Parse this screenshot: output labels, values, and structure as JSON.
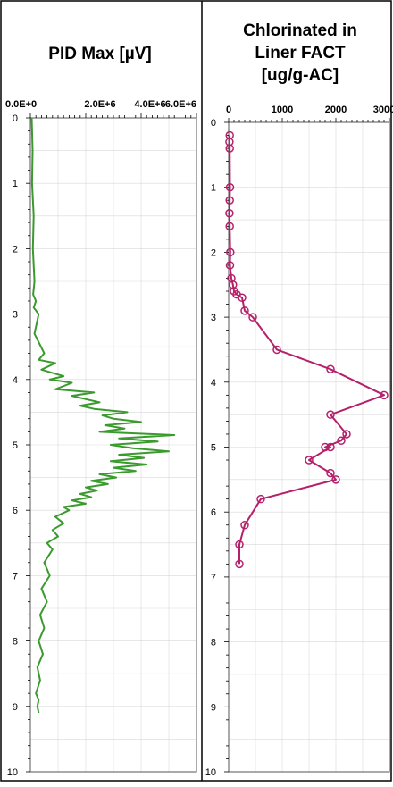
{
  "chart_data": [
    {
      "type": "line",
      "title": "PID Max [µV]",
      "x_ticks": [
        "0.0E+0",
        "2.0E+6",
        "4.0E+6",
        "6.0E+6"
      ],
      "y_ticks": [
        "0",
        "1",
        "2",
        "3",
        "4",
        "5",
        "6",
        "7",
        "8",
        "9",
        "10"
      ],
      "xlim": [
        0,
        6000000
      ],
      "ylim": [
        0,
        10
      ],
      "y_reversed": true,
      "grid": true,
      "color": "#3a9a2e",
      "series": [
        {
          "x": [
            50000,
            80000,
            60000,
            120000,
            90000,
            150000,
            100000,
            200000,
            120000,
            300000,
            150000,
            500000,
            300000,
            900000,
            400000,
            1200000,
            700000,
            1500000,
            900000,
            2300000,
            1500000,
            2000000,
            2500000,
            1800000,
            2300000,
            3500000,
            2600000,
            3000000,
            4000000,
            2700000,
            3400000,
            2500000,
            5200000,
            3200000,
            4600000,
            2900000,
            3700000,
            5000000,
            3200000,
            4100000,
            2900000,
            4200000,
            3000000,
            3800000,
            2500000,
            3100000,
            2200000,
            2800000,
            2000000,
            2400000,
            1800000,
            2200000,
            1500000,
            2000000,
            1200000,
            1400000,
            900000,
            1200000,
            800000,
            1000000,
            600000,
            800000,
            500000,
            700000,
            400000,
            600000,
            350000,
            500000,
            300000,
            450000,
            250000,
            350000,
            200000,
            300000,
            250000,
            300000
          ],
          "y": [
            0.0,
            0.5,
            1.0,
            1.5,
            2.0,
            2.5,
            2.7,
            2.8,
            2.9,
            3.0,
            3.3,
            3.6,
            3.7,
            3.75,
            3.85,
            3.95,
            4.0,
            4.05,
            4.15,
            4.2,
            4.25,
            4.3,
            4.35,
            4.4,
            4.45,
            4.5,
            4.55,
            4.6,
            4.65,
            4.7,
            4.75,
            4.8,
            4.85,
            4.9,
            4.95,
            5.0,
            5.05,
            5.1,
            5.15,
            5.2,
            5.25,
            5.3,
            5.35,
            5.4,
            5.45,
            5.5,
            5.55,
            5.6,
            5.65,
            5.7,
            5.75,
            5.8,
            5.85,
            5.9,
            5.95,
            6.0,
            6.1,
            6.2,
            6.3,
            6.4,
            6.5,
            6.6,
            6.8,
            7.0,
            7.2,
            7.4,
            7.6,
            7.8,
            8.0,
            8.2,
            8.4,
            8.6,
            8.8,
            8.9,
            9.0,
            9.1
          ]
        }
      ]
    },
    {
      "type": "line",
      "title": "Chlorinated in Liner FACT [ug/g-AC]",
      "x_ticks": [
        "0",
        "1000",
        "2000",
        "3000"
      ],
      "y_ticks": [
        "0",
        "1",
        "2",
        "3",
        "4",
        "5",
        "6",
        "7",
        "8",
        "9",
        "10"
      ],
      "xlim": [
        0,
        3000
      ],
      "ylim": [
        0,
        10
      ],
      "y_reversed": true,
      "grid": true,
      "color": "#b5206a",
      "markers": "open-circle",
      "series": [
        {
          "x": [
            20,
            15,
            20,
            25,
            20,
            15,
            20,
            30,
            25,
            50,
            80,
            100,
            150,
            250,
            300,
            450,
            900,
            1900,
            2900,
            1900,
            2200,
            2100,
            1800,
            1900,
            1500,
            1900,
            2000,
            600,
            300,
            200,
            200
          ],
          "y": [
            0.2,
            0.3,
            0.4,
            1.0,
            1.2,
            1.4,
            1.6,
            2.0,
            2.2,
            2.4,
            2.5,
            2.6,
            2.65,
            2.7,
            2.9,
            3.0,
            3.5,
            3.8,
            4.2,
            4.5,
            4.8,
            4.9,
            5.0,
            5.0,
            5.2,
            5.4,
            5.5,
            5.8,
            6.2,
            6.5,
            6.8
          ]
        }
      ]
    }
  ],
  "left": {
    "title_lines": [
      "PID Max [µV]"
    ],
    "x_tick_labels": [
      "0.0E+0",
      "2.0E+6",
      "4.0E+6",
      "6.0E+6"
    ]
  },
  "right": {
    "title_lines": [
      "Chlorinated in",
      "Liner FACT",
      "[ug/g-AC]"
    ],
    "x_tick_labels": [
      "0",
      "1000",
      "2000",
      "3000"
    ]
  }
}
